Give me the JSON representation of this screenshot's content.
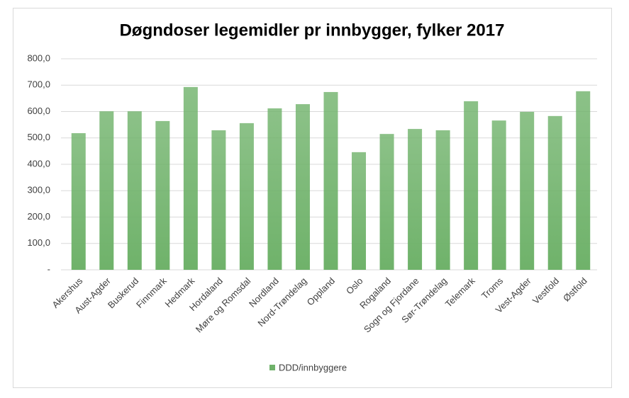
{
  "chart_data": {
    "type": "bar",
    "title": "Døgndoser legemidler pr innbygger, fylker 2017",
    "categories": [
      "Akershus",
      "Aust-Agder",
      "Buskerud",
      "Finnmark",
      "Hedmark",
      "Hordaland",
      "Møre og Romsdal",
      "Nordland",
      "Nord-Trøndelag",
      "Oppland",
      "Oslo",
      "Rogaland",
      "Sogn og Fjordane",
      "Sør-Trøndelag",
      "Telemark",
      "Troms",
      "Vest-Agder",
      "Vestfold",
      "Østfold"
    ],
    "series": [
      {
        "name": "DDD/innbyggere",
        "color": "#6fb26a",
        "values": [
          518,
          601,
          601,
          564,
          693,
          529,
          556,
          612,
          628,
          674,
          446,
          515,
          534,
          529,
          639,
          566,
          599,
          583,
          677
        ]
      }
    ],
    "ylim": [
      0,
      800
    ],
    "yticks": [
      {
        "value": 0,
        "label": "-"
      },
      {
        "value": 100,
        "label": "100,0"
      },
      {
        "value": 200,
        "label": "200,0"
      },
      {
        "value": 300,
        "label": "300,0"
      },
      {
        "value": 400,
        "label": "400,0"
      },
      {
        "value": 500,
        "label": "500,0"
      },
      {
        "value": 600,
        "label": "600,0"
      },
      {
        "value": 700,
        "label": "700,0"
      },
      {
        "value": 800,
        "label": "800,0"
      }
    ],
    "grid": true,
    "legend": "bottom"
  }
}
